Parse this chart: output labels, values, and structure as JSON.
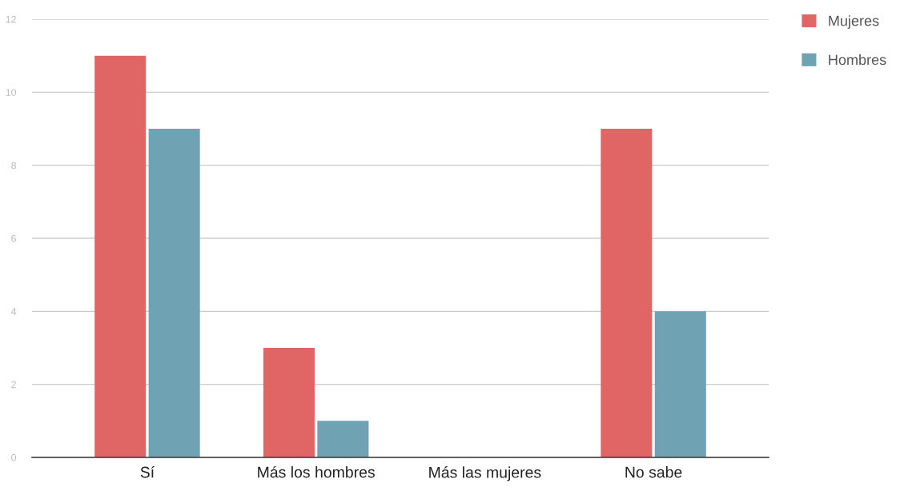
{
  "chart_data": {
    "type": "bar",
    "categories": [
      "Sí",
      "Más los hombres",
      "Más las mujeres",
      "No sabe"
    ],
    "series": [
      {
        "name": "Mujeres",
        "color": "#e06666",
        "values": [
          11,
          3,
          0,
          9
        ]
      },
      {
        "name": "Hombres",
        "color": "#6fa3b3",
        "values": [
          9,
          1,
          0,
          4
        ]
      }
    ],
    "ylim": [
      0,
      12
    ],
    "yticks": [
      0,
      2,
      4,
      6,
      8,
      10,
      12
    ],
    "grid": "y",
    "legend": "top right"
  }
}
